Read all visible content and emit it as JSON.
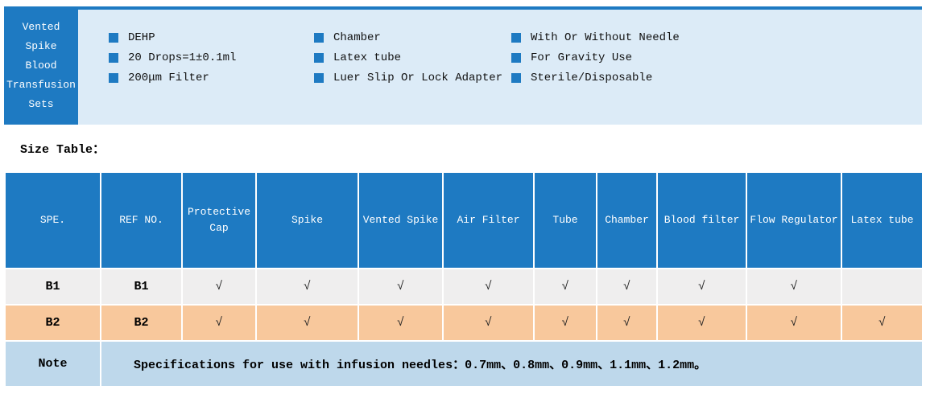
{
  "colors": {
    "primary_blue": "#1e7ac2",
    "panel_light_blue": "#dcebf7",
    "row_gray": "#efeeee",
    "row_orange": "#f8c89c",
    "note_blue": "#bed8eb"
  },
  "product_header": {
    "title_lines": [
      "Vented",
      "Spike",
      "Blood",
      "Transfusion",
      "Sets"
    ],
    "bullet_icon": "square-bullet",
    "feature_columns": [
      {
        "items": [
          "DEHP",
          "20 Drops=1±0.1ml",
          "200μm Filter"
        ]
      },
      {
        "items": [
          "Chamber",
          "Latex tube",
          "Luer Slip Or Lock Adapter"
        ]
      },
      {
        "items": [
          "With Or Without Needle",
          "For Gravity Use",
          "Sterile/Disposable"
        ]
      }
    ]
  },
  "size_table": {
    "caption": "Size Table：",
    "columns": [
      "SPE.",
      "REF NO.",
      "Protective Cap",
      "Spike",
      "Vented Spike",
      "Air Filter",
      "Tube",
      "Chamber",
      "Blood filter",
      "Flow Regulator",
      "Latex tube"
    ],
    "check_glyph": "√",
    "rows": [
      {
        "spe": "B1",
        "ref": "B1",
        "checks": [
          true,
          true,
          true,
          true,
          true,
          true,
          true,
          true,
          false
        ]
      },
      {
        "spe": "B2",
        "ref": "B2",
        "checks": [
          true,
          true,
          true,
          true,
          true,
          true,
          true,
          true,
          true
        ]
      }
    ],
    "note_label": "Note",
    "note_text": "Specifications for use with infusion needles：0.7mm、0.8mm、0.9mm、1.1mm、1.2mm。"
  }
}
